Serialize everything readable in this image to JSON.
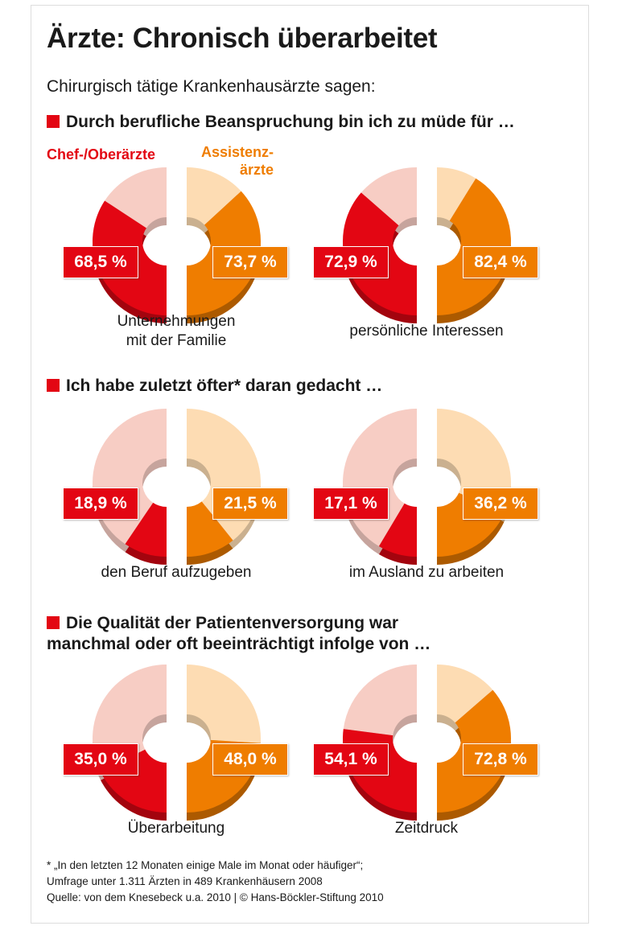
{
  "title": "Ärzte: Chronisch überarbeitet",
  "subtitle": "Chirurgisch tätige Krankenhausärzte sagen:",
  "colors": {
    "chef": "#e30613",
    "chef_light": "#f7cdc4",
    "assistenz": "#ef7d00",
    "assistenz_light": "#fddcb3",
    "accent": "#e30613"
  },
  "legend": {
    "chef": "Chef-/Oberärzte",
    "assistenz_line1": "Assistenz-",
    "assistenz_line2": "ärzte"
  },
  "sections": [
    {
      "heading": "Durch berufliche Beanspruchung bin ich zu müde für …"
    },
    {
      "heading": "Ich habe zuletzt öfter* daran gedacht …"
    },
    {
      "heading_line1": "Die Qualität der Patientenversorgung war",
      "heading_line2": "manchmal oder oft beeinträchtigt infolge von …"
    }
  ],
  "chart_data": {
    "type": "pie",
    "unit": "%",
    "series_names": [
      "Chef-/Oberärzte",
      "Assistenzärzte"
    ],
    "charts": [
      {
        "caption_line1": "Unternehmungen",
        "caption_line2": "mit der Familie",
        "chef": 68.5,
        "assistenz": 73.7,
        "chef_label": "68,5 %",
        "assistenz_label": "73,7 %"
      },
      {
        "caption_line1": "persönliche Interessen",
        "caption_line2": "",
        "chef": 72.9,
        "assistenz": 82.4,
        "chef_label": "72,9 %",
        "assistenz_label": "82,4 %"
      },
      {
        "caption_line1": "den Beruf aufzugeben",
        "caption_line2": "",
        "chef": 18.9,
        "assistenz": 21.5,
        "chef_label": "18,9 %",
        "assistenz_label": "21,5 %"
      },
      {
        "caption_line1": "im Ausland zu arbeiten",
        "caption_line2": "",
        "chef": 17.1,
        "assistenz": 36.2,
        "chef_label": "17,1 %",
        "assistenz_label": "36,2 %"
      },
      {
        "caption_line1": "Überarbeitung",
        "caption_line2": "",
        "chef": 35.0,
        "assistenz": 48.0,
        "chef_label": "35,0 %",
        "assistenz_label": "48,0 %"
      },
      {
        "caption_line1": "Zeitdruck",
        "caption_line2": "",
        "chef": 54.1,
        "assistenz": 72.8,
        "chef_label": "54,1 %",
        "assistenz_label": "72,8 %"
      }
    ]
  },
  "footer": {
    "line1": "* „In den letzten 12 Monaten einige Male im Monat oder häufiger“;",
    "line2": "Umfrage unter 1.311 Ärzten in 489 Krankenhäusern 2008",
    "line3": "Quelle: von dem Knesebeck u.a. 2010 | © Hans-Böckler-Stiftung 2010"
  }
}
